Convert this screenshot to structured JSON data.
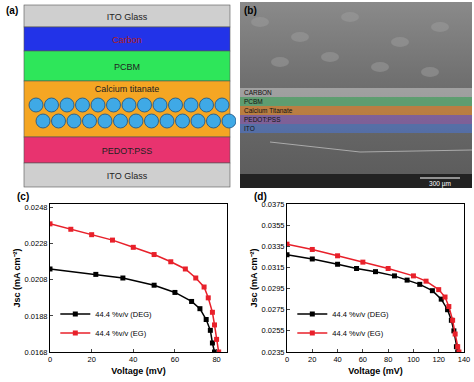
{
  "diagram": {
    "label": "(a)",
    "layers": [
      "ITO Glass",
      "Carbon",
      "PCBM",
      "Calcium titanate",
      "PEDOT:PSS",
      "ITO Glass"
    ]
  },
  "micrograph": {
    "label": "(b)",
    "layers": [
      "CARBON",
      "PCBM",
      "Calcium Titanate",
      "PEDOT:PSS",
      "ITO"
    ],
    "scale_bar": "300 µm"
  },
  "chart_data": [
    {
      "type": "line",
      "annotations": [
        "(c)"
      ],
      "x_label": "Voltage (mV)",
      "y_label": "Jsc (mA cm⁻²)",
      "xlim": [
        0,
        85
      ],
      "xticks": [
        0,
        20,
        40,
        60,
        80
      ],
      "ylim": [
        0.0168,
        0.025
      ],
      "yticks": [
        0.0168,
        0.0188,
        0.0208,
        0.0228,
        0.0248
      ],
      "legend": "lower left",
      "series": [
        {
          "name": "44.4 %v/v (DEG)",
          "color": "#000000",
          "marker": "square",
          "x": [
            0,
            22,
            35,
            50,
            60,
            68,
            72,
            75,
            77,
            78,
            79
          ],
          "values": [
            0.0214,
            0.0211,
            0.0209,
            0.0205,
            0.0201,
            0.0196,
            0.0192,
            0.0186,
            0.018,
            0.0173,
            0.0168
          ]
        },
        {
          "name": "44.4 %v/v (EG)",
          "color": "#e8202a",
          "marker": "square",
          "x": [
            0,
            10,
            20,
            30,
            40,
            50,
            58,
            65,
            70,
            74,
            76,
            78,
            79,
            80,
            81
          ],
          "values": [
            0.0239,
            0.0236,
            0.0233,
            0.023,
            0.0226,
            0.0222,
            0.0218,
            0.0214,
            0.0209,
            0.0204,
            0.0198,
            0.019,
            0.0183,
            0.0175,
            0.0168
          ]
        }
      ]
    },
    {
      "type": "line",
      "annotations": [
        "(d)"
      ],
      "x_label": "Voltage (mV)",
      "y_label": "Jsc (mA cm⁻²)",
      "xlim": [
        0,
        140
      ],
      "xticks": [
        0,
        20,
        40,
        60,
        80,
        100,
        120,
        140
      ],
      "ylim": [
        0.0235,
        0.0375
      ],
      "yticks": [
        0.0235,
        0.0255,
        0.0275,
        0.0295,
        0.0315,
        0.0335,
        0.0355,
        0.0375
      ],
      "legend": "lower left",
      "series": [
        {
          "name": "44.4 %v/v (DEG)",
          "color": "#000000",
          "marker": "square",
          "x": [
            0,
            20,
            40,
            55,
            70,
            85,
            95,
            105,
            115,
            122,
            127,
            130,
            132,
            134,
            135
          ],
          "values": [
            0.0327,
            0.0323,
            0.0318,
            0.0314,
            0.0311,
            0.0307,
            0.0303,
            0.0299,
            0.0293,
            0.0285,
            0.0275,
            0.0265,
            0.0255,
            0.024,
            0.0235
          ]
        },
        {
          "name": "44.4 %v/v (EG)",
          "color": "#e8202a",
          "marker": "square",
          "x": [
            0,
            20,
            40,
            60,
            80,
            100,
            110,
            120,
            125,
            128,
            131,
            133,
            135,
            136
          ],
          "values": [
            0.0337,
            0.0332,
            0.0326,
            0.032,
            0.0314,
            0.0307,
            0.0302,
            0.0294,
            0.0287,
            0.0278,
            0.0265,
            0.0252,
            0.024,
            0.0235
          ]
        }
      ]
    }
  ]
}
